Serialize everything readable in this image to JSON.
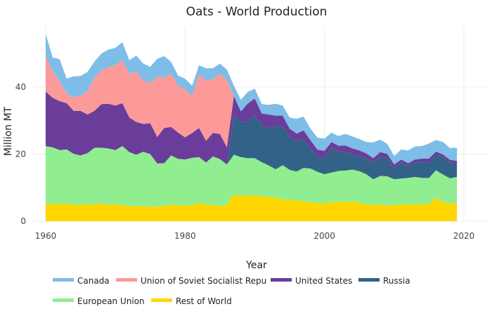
{
  "chart_data": {
    "type": "area",
    "stacked": true,
    "title": "Oats - World Production",
    "xlabel": "Year",
    "ylabel": "Million MT",
    "xlim": [
      1960,
      2020
    ],
    "ylim": [
      0,
      58
    ],
    "xticks": [
      1960,
      1980,
      2000,
      2020
    ],
    "yticks": [
      0,
      20,
      40
    ],
    "grid": true,
    "legend_position": "bottom",
    "x": [
      1960,
      1961,
      1962,
      1963,
      1964,
      1965,
      1966,
      1967,
      1968,
      1969,
      1970,
      1971,
      1972,
      1973,
      1974,
      1975,
      1976,
      1977,
      1978,
      1979,
      1980,
      1981,
      1982,
      1983,
      1984,
      1985,
      1986,
      1987,
      1988,
      1989,
      1990,
      1991,
      1992,
      1993,
      1994,
      1995,
      1996,
      1997,
      1998,
      1999,
      2000,
      2001,
      2002,
      2003,
      2004,
      2005,
      2006,
      2007,
      2008,
      2009,
      2010,
      2011,
      2012,
      2013,
      2014,
      2015,
      2016,
      2017,
      2018,
      2019
    ],
    "series": [
      {
        "name": "Rest of World",
        "color": "#ffd700",
        "values": [
          5.3,
          5.2,
          5.1,
          5.2,
          5.0,
          4.8,
          5.2,
          5.0,
          5.3,
          4.9,
          5.0,
          4.8,
          4.5,
          4.4,
          4.5,
          4.4,
          4.3,
          4.6,
          4.9,
          4.8,
          4.6,
          4.8,
          5.4,
          5.0,
          4.8,
          4.5,
          4.9,
          8.0,
          7.5,
          7.8,
          7.6,
          7.5,
          7.3,
          7.0,
          6.5,
          6.3,
          6.2,
          5.9,
          5.6,
          5.4,
          5.3,
          5.7,
          5.7,
          5.8,
          5.9,
          5.4,
          5.2,
          4.9,
          4.9,
          4.7,
          4.8,
          5.0,
          5.0,
          5.0,
          5.0,
          5.2,
          7.0,
          5.6,
          5.3,
          5.3
        ]
      },
      {
        "name": "European Union",
        "color": "#90ee90",
        "values": [
          17.1,
          16.8,
          16.1,
          16.2,
          15.1,
          14.8,
          15.1,
          16.9,
          16.6,
          16.8,
          16.2,
          17.6,
          16.1,
          15.4,
          16.2,
          15.6,
          12.9,
          12.7,
          14.7,
          13.8,
          13.8,
          14.1,
          13.7,
          12.5,
          14.5,
          14.0,
          12.0,
          11.8,
          11.6,
          11.0,
          11.2,
          10.1,
          9.3,
          8.5,
          10.2,
          9.0,
          8.6,
          10.0,
          10.1,
          9.3,
          8.7,
          8.8,
          9.3,
          9.3,
          9.5,
          9.5,
          8.8,
          7.6,
          8.6,
          8.7,
          7.7,
          7.7,
          7.9,
          8.2,
          7.9,
          7.7,
          8.2,
          8.3,
          7.5,
          7.9
        ]
      },
      {
        "name": "Russia",
        "color": "#336288",
        "values": [
          0,
          0,
          0,
          0,
          0,
          0,
          0,
          0,
          0,
          0,
          0,
          0,
          0,
          0,
          0,
          0,
          0,
          0,
          0,
          0,
          0,
          0,
          0,
          0,
          0,
          0,
          0,
          12.0,
          10.5,
          11.0,
          12.6,
          11.0,
          11.0,
          13.0,
          11.5,
          10.0,
          9.0,
          8.6,
          6.0,
          4.5,
          4.8,
          7.4,
          5.8,
          5.4,
          4.6,
          4.5,
          4.8,
          5.0,
          5.8,
          5.4,
          3.2,
          4.9,
          3.5,
          4.2,
          4.8,
          4.5,
          4.7,
          5.3,
          4.7,
          4.0
        ]
      },
      {
        "name": "United States",
        "color": "#6a3d9a",
        "values": [
          16.3,
          14.8,
          14.6,
          13.8,
          12.8,
          13.3,
          11.5,
          11.0,
          13.0,
          13.3,
          13.3,
          12.8,
          10.3,
          9.8,
          8.3,
          9.2,
          7.9,
          10.5,
          8.5,
          7.8,
          6.6,
          7.4,
          8.7,
          6.5,
          7.0,
          7.5,
          5.1,
          5.5,
          3.1,
          5.3,
          5.2,
          3.5,
          4.2,
          3.0,
          3.3,
          2.3,
          2.3,
          2.6,
          2.4,
          2.1,
          2.2,
          1.7,
          1.7,
          2.1,
          1.7,
          1.7,
          1.4,
          1.3,
          1.3,
          1.3,
          1.2,
          0.8,
          0.9,
          1.0,
          1.0,
          1.3,
          0.9,
          0.7,
          0.8,
          0.8
        ]
      },
      {
        "name": "Union of Soviet Socialist Repu",
        "color": "#fb9a99",
        "values": [
          10.5,
          8.0,
          6.0,
          3.0,
          4.0,
          4.5,
          7.0,
          10.0,
          10.0,
          11.0,
          12.0,
          12.8,
          13.0,
          15.0,
          13.0,
          12.0,
          18.0,
          15.0,
          16.0,
          14.0,
          14.5,
          11.0,
          16.0,
          18.0,
          16.0,
          18.0,
          20.0,
          0,
          0,
          0,
          0,
          0,
          0,
          0,
          0,
          0,
          0,
          0,
          0,
          0,
          0,
          0,
          0,
          0,
          0,
          0,
          0,
          0,
          0,
          0,
          0,
          0,
          0,
          0,
          0,
          0,
          0,
          0,
          0,
          0
        ]
      },
      {
        "name": "Canada",
        "color": "#7dbde8",
        "values": [
          6.7,
          4.0,
          6.5,
          4.3,
          6.3,
          5.9,
          5.7,
          4.7,
          5.1,
          5.2,
          5.2,
          5.4,
          4.1,
          4.8,
          5.0,
          4.8,
          5.3,
          6.4,
          3.4,
          3.0,
          3.0,
          3.1,
          2.7,
          3.6,
          3.3,
          3.0,
          3.2,
          3.1,
          3.5,
          3.5,
          2.9,
          2.8,
          2.9,
          3.5,
          3.0,
          3.3,
          4.4,
          4.1,
          3.5,
          3.6,
          3.6,
          2.8,
          2.9,
          3.4,
          3.6,
          3.4,
          3.4,
          4.7,
          3.7,
          3.0,
          2.5,
          3.0,
          3.8,
          3.9,
          3.7,
          4.5,
          3.4,
          3.7,
          3.5,
          3.9
        ]
      }
    ]
  }
}
